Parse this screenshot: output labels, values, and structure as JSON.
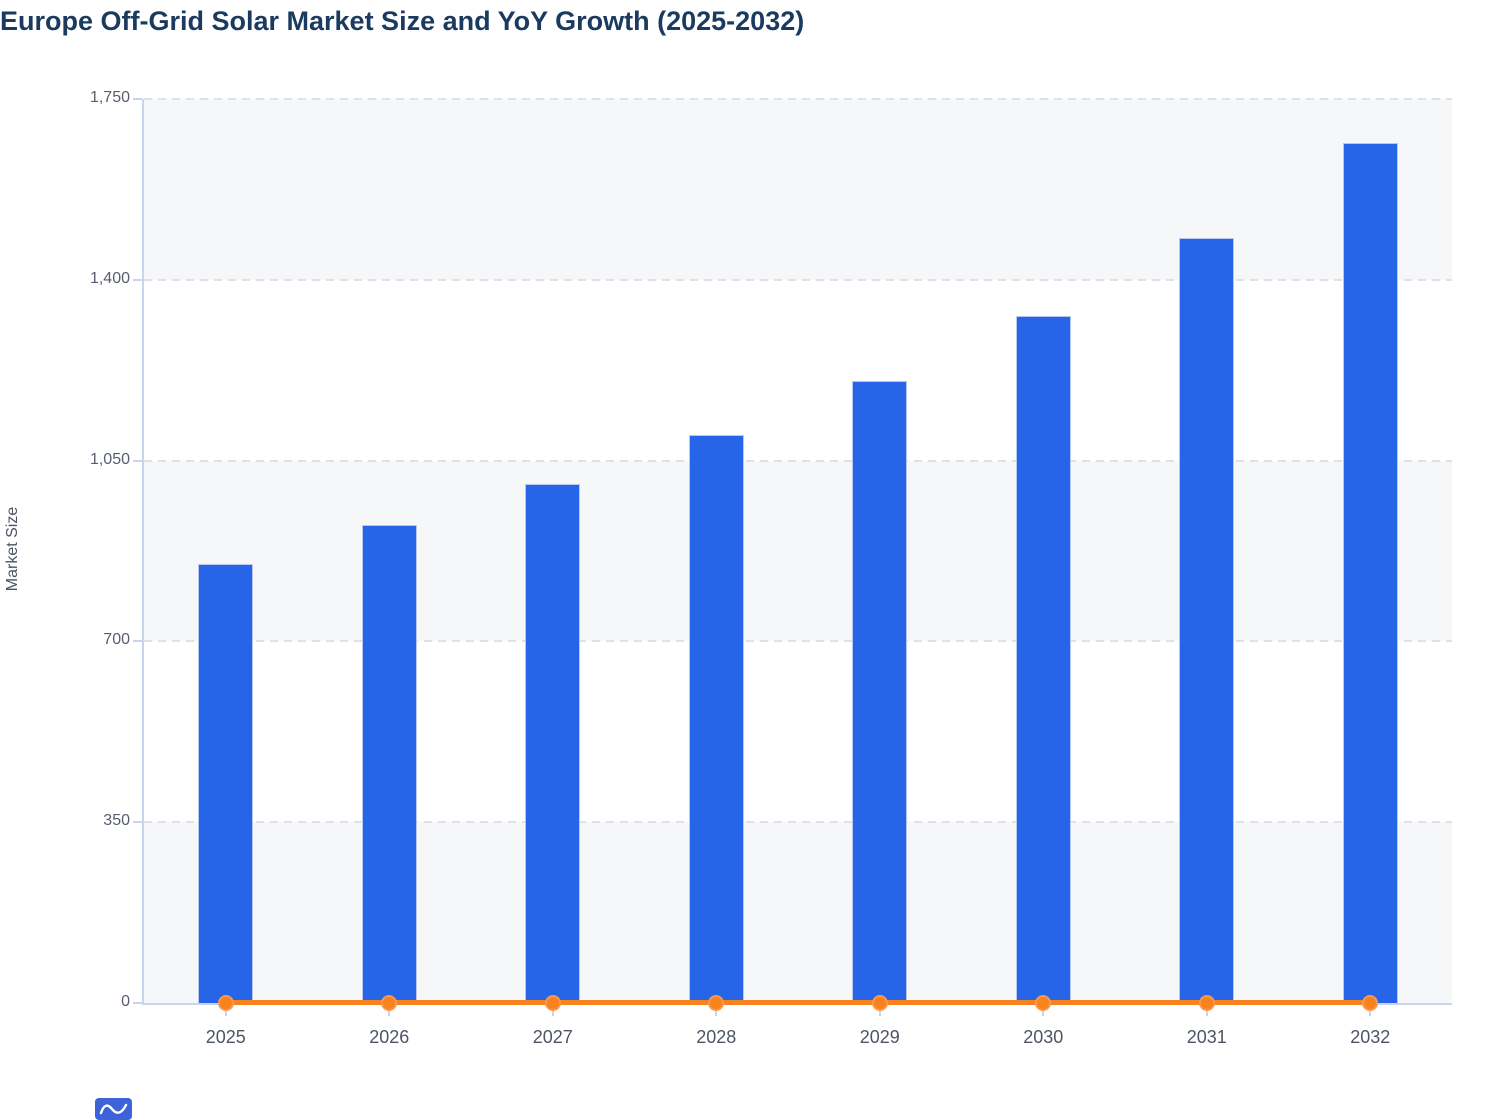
{
  "title": "Europe Off-Grid Solar Market Size and YoY Growth (2025-2032)",
  "chart_data": {
    "type": "bar",
    "title": "Europe Off-Grid Solar Market Size and YoY Growth (2025-2032)",
    "categories": [
      "2025",
      "2026",
      "2027",
      "2028",
      "2029",
      "2030",
      "2031",
      "2032"
    ],
    "series": [
      {
        "name": "Market Size",
        "type": "bar",
        "color": "#2765e8",
        "values": [
          850,
          925,
          1005,
          1100,
          1205,
          1330,
          1480,
          1665
        ]
      },
      {
        "name": "YoY Growth",
        "type": "line",
        "color": "#f8821d",
        "values": [
          0,
          0,
          0,
          0,
          0,
          0,
          0,
          0
        ],
        "note": "rendered flat along the zero baseline with circular markers at each year"
      }
    ],
    "xlabel": "",
    "ylabel": "Market Size",
    "ylim": [
      0,
      1750
    ],
    "ytick_step": 350,
    "ytick_labels": [
      "0",
      "350",
      "700",
      "1,050",
      "1,400",
      "1,750"
    ],
    "grid": "horizontal dashed gridlines with alternating background bands",
    "legend_position": "none"
  },
  "colors": {
    "bar": "#2765e8",
    "bar_stroke": "#b9c7ef",
    "line": "#f8821d",
    "marker_stroke": "#f9974b",
    "title_text": "#1b3a5f",
    "axis_text": "#565e6e",
    "axis_line": "#c9d3ee",
    "gridline": "#dfe1e8",
    "band_fill": "#f6f7f9",
    "logo": "#3c63d8"
  }
}
